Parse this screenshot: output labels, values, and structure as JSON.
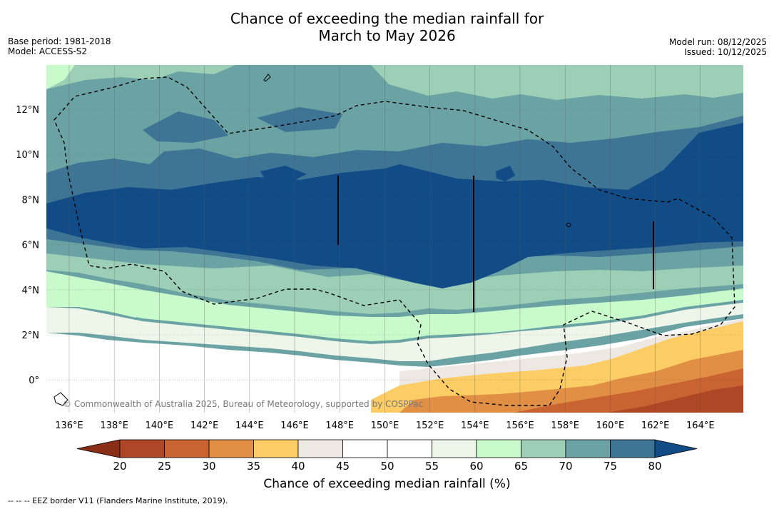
{
  "title": {
    "line1": "Chance of exceeding the median rainfall for",
    "line2": "March to May 2026"
  },
  "meta_left": {
    "base_period": "Base period: 1981-2018",
    "model": "Model: ACCESS-S2"
  },
  "meta_right": {
    "model_run": "Model run: 08/12/2025",
    "issued": "Issued: 10/12/2025"
  },
  "map": {
    "lon_labels": [
      "136°E",
      "138°E",
      "140°E",
      "142°E",
      "144°E",
      "146°E",
      "148°E",
      "150°E",
      "152°E",
      "154°E",
      "156°E",
      "158°E",
      "160°E",
      "162°E",
      "164°E"
    ],
    "lat_labels": [
      "12°N",
      "10°N",
      "8°N",
      "6°N",
      "4°N",
      "2°N",
      "0°"
    ],
    "copyright": "© Commonwealth of Australia 2025, Bureau of Meteorology, supported by COSPPac",
    "border_line_style": "dashed"
  },
  "colorbar": {
    "ticks": [
      "20",
      "25",
      "30",
      "35",
      "40",
      "45",
      "50",
      "55",
      "60",
      "65",
      "70",
      "75",
      "80"
    ],
    "colors": [
      "#8b2e17",
      "#ad4726",
      "#c96332",
      "#e08f45",
      "#fccd64",
      "#ede8e2",
      "#ffffff",
      "#ffffff",
      "#eef6ea",
      "#c9facb",
      "#9ccfb6",
      "#6ba3a5",
      "#3e7595",
      "#114c87"
    ],
    "label": "Chance of exceeding median rainfall (%)"
  },
  "footer": "--  --  -- EEZ border V11 (Flanders Marine Institute, 2019)."
}
